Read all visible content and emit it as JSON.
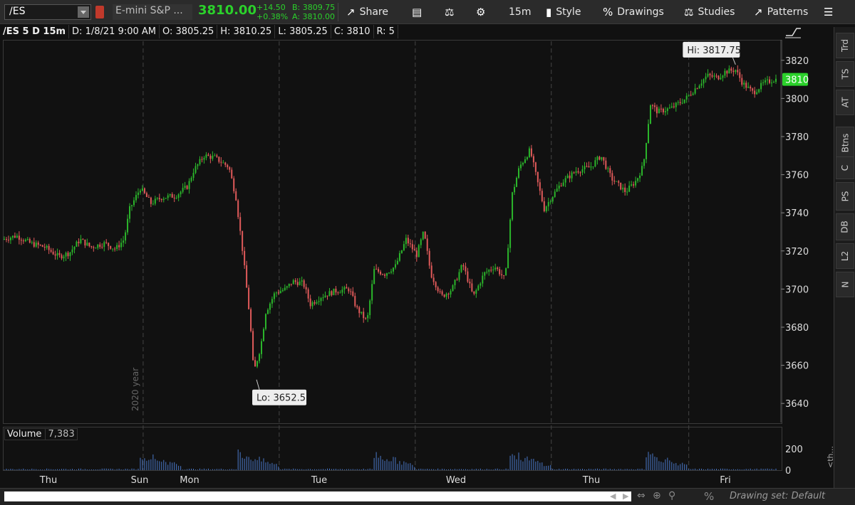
{
  "toolbar": {
    "symbol": "/ES",
    "description": "E-mini S&P ...",
    "last": "3810.00",
    "change": "+14.50",
    "change_pct": "+0.38%",
    "bid": "B: 3809.75",
    "ask": "A: 3810.00",
    "share_label": "Share",
    "timeframe": "15m",
    "style_label": "Style",
    "drawings_label": "Drawings",
    "studies_label": "Studies",
    "patterns_label": "Patterns"
  },
  "header": {
    "symbol": "/ES 5 D 15m",
    "date": "D: 1/8/21 9:00 AM",
    "open": "O: 3805.25",
    "high": "H: 3810.25",
    "low": "L: 3805.25",
    "close": "C: 3810",
    "range": "R: 5"
  },
  "volume": {
    "label": "Volume",
    "value": "7,383",
    "tick_labels": [
      "200",
      "0"
    ]
  },
  "right_tabs": [
    "Trd",
    "TS",
    "AT",
    "Btns",
    "C",
    "PS",
    "DB",
    "L2",
    "N"
  ],
  "bottom": {
    "drawing_set": "Drawing set: Default",
    "collapse_label": "<th..."
  },
  "colors": {
    "up": "#2bb52b",
    "down": "#e05a5a",
    "price_badge": "#2bd12b"
  },
  "chart_data": {
    "type": "candlestick",
    "title": "/ES 5 D 15m",
    "ylim": [
      3630,
      3830
    ],
    "y_ticks": [
      3640,
      3660,
      3680,
      3700,
      3720,
      3740,
      3760,
      3780,
      3800,
      3820
    ],
    "x_labels": [
      "Thu",
      "Sun",
      "Mon",
      "Tue",
      "Wed",
      "Thu",
      "Fri"
    ],
    "x_annotation": "2020 year",
    "last_price": "3810",
    "annotations": [
      {
        "label": "Hi: 3817.75",
        "value": 3817.75
      },
      {
        "label": "Lo: 3652.5",
        "value": 3652.5
      }
    ],
    "path": [
      [
        0,
        3726
      ],
      [
        20,
        3728
      ],
      [
        40,
        3724
      ],
      [
        60,
        3722
      ],
      [
        80,
        3717
      ],
      [
        95,
        3719
      ],
      [
        110,
        3726
      ],
      [
        125,
        3722
      ],
      [
        145,
        3724
      ],
      [
        160,
        3721
      ],
      [
        172,
        3726
      ],
      [
        180,
        3742
      ],
      [
        195,
        3753
      ],
      [
        210,
        3745
      ],
      [
        225,
        3748
      ],
      [
        245,
        3749
      ],
      [
        262,
        3754
      ],
      [
        270,
        3762
      ],
      [
        285,
        3770
      ],
      [
        300,
        3769
      ],
      [
        320,
        3764
      ],
      [
        330,
        3748
      ],
      [
        340,
        3718
      ],
      [
        350,
        3683
      ],
      [
        355,
        3656
      ],
      [
        365,
        3670
      ],
      [
        372,
        3688
      ],
      [
        385,
        3698
      ],
      [
        400,
        3700
      ],
      [
        410,
        3704
      ],
      [
        425,
        3703
      ],
      [
        435,
        3692
      ],
      [
        450,
        3696
      ],
      [
        470,
        3699
      ],
      [
        490,
        3700
      ],
      [
        500,
        3690
      ],
      [
        515,
        3683
      ],
      [
        525,
        3710
      ],
      [
        540,
        3708
      ],
      [
        555,
        3712
      ],
      [
        570,
        3726
      ],
      [
        585,
        3718
      ],
      [
        595,
        3730
      ],
      [
        605,
        3708
      ],
      [
        620,
        3696
      ],
      [
        635,
        3700
      ],
      [
        650,
        3713
      ],
      [
        665,
        3696
      ],
      [
        680,
        3708
      ],
      [
        695,
        3712
      ],
      [
        710,
        3705
      ],
      [
        720,
        3750
      ],
      [
        730,
        3764
      ],
      [
        745,
        3773
      ],
      [
        755,
        3757
      ],
      [
        765,
        3742
      ],
      [
        775,
        3748
      ],
      [
        790,
        3756
      ],
      [
        810,
        3762
      ],
      [
        830,
        3764
      ],
      [
        845,
        3770
      ],
      [
        860,
        3758
      ],
      [
        880,
        3751
      ],
      [
        895,
        3757
      ],
      [
        905,
        3765
      ],
      [
        915,
        3797
      ],
      [
        925,
        3793
      ],
      [
        945,
        3795
      ],
      [
        965,
        3800
      ],
      [
        980,
        3806
      ],
      [
        995,
        3812
      ],
      [
        1010,
        3811
      ],
      [
        1020,
        3814
      ],
      [
        1035,
        3815
      ],
      [
        1045,
        3808
      ],
      [
        1060,
        3803
      ],
      [
        1075,
        3808
      ],
      [
        1090,
        3810
      ]
    ]
  }
}
